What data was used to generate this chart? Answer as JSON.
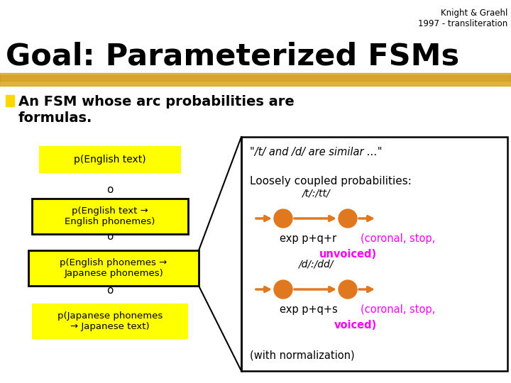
{
  "bg_color": "#ffffff",
  "title_top_right": "Knight & Graehl\n1997 - transliteration",
  "title_main": "Goal: Parameterized FSMs",
  "highlight_color": "#DAA520",
  "bullet_color": "#FFD700",
  "bullet_text_line1": "An FSM whose arc probabilities are",
  "bullet_text_line2": "formulas.",
  "yellow_box_color": "#FFFF00",
  "yellow_box_border": "#000000",
  "quote_text": "\"/t/ and /d/ are similar …\"",
  "loosely_text": "Loosely coupled probabilities:",
  "fsm1_label": "/t/:/tt/",
  "fsm1_exp": "exp p+q+r",
  "fsm1_coronal": "(coronal, stop,",
  "fsm1_unvoiced": "unvoiced)",
  "fsm2_label": "/d/:/dd/",
  "fsm2_exp": "exp p+q+s",
  "fsm2_coronal": "(coronal, stop,",
  "fsm2_voiced": "voiced)",
  "norm_text": "(with normalization)",
  "orange_color": "#E07820",
  "magenta_color": "#FF00FF",
  "arrow_color": "#E07820"
}
